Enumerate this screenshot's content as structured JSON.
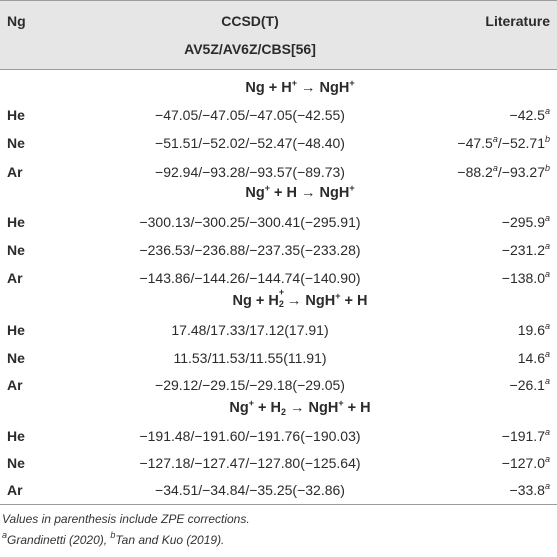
{
  "header": {
    "col_ng": "Ng",
    "col_ccsd_line1": "CCSD(T)",
    "col_ccsd_line2": "AV5Z/AV6Z/CBS[56]",
    "col_lit": "Literature"
  },
  "sections": [
    {
      "title": "Ng + H+ → NgH+",
      "rows": [
        {
          "ng": "He",
          "ccsd": "−47.05/−47.05/−47.05(−42.55)",
          "lit": "−42.5a"
        },
        {
          "ng": "Ne",
          "ccsd": "−51.51/−52.02/−52.47(−48.40)",
          "lit": "−47.5a/−52.71b"
        },
        {
          "ng": "Ar",
          "ccsd": "−92.94/−93.28/−93.57(−89.73)",
          "lit": "−88.2a/−93.27b"
        }
      ]
    },
    {
      "title": "Ng+ + H → NgH+",
      "rows": [
        {
          "ng": "He",
          "ccsd": "−300.13/−300.25/−300.41(−295.91)",
          "lit": "−295.9a"
        },
        {
          "ng": "Ne",
          "ccsd": "−236.53/−236.88/−237.35(−233.28)",
          "lit": "−231.2a"
        },
        {
          "ng": "Ar",
          "ccsd": "−143.86/−144.26/−144.74(−140.90)",
          "lit": "−138.0a"
        }
      ]
    },
    {
      "title": "Ng + H2+ → NgH+ + H",
      "rows": [
        {
          "ng": "He",
          "ccsd": "17.48/17.33/17.12(17.91)",
          "lit": "19.6a"
        },
        {
          "ng": "Ne",
          "ccsd": "11.53/11.53/11.55(11.91)",
          "lit": "14.6a"
        },
        {
          "ng": "Ar",
          "ccsd": "−29.12/−29.15/−29.18(−29.05)",
          "lit": "−26.1a"
        }
      ]
    },
    {
      "title": "Ng+ + H2 → NgH+ + H",
      "rows": [
        {
          "ng": "He",
          "ccsd": "−191.48/−191.60/−191.76(−190.03)",
          "lit": "−191.7a"
        },
        {
          "ng": "Ne",
          "ccsd": "−127.18/−127.47/−127.80(−125.64)",
          "lit": "−127.0a"
        },
        {
          "ng": "Ar",
          "ccsd": "−34.51/−34.84/−35.25(−32.86)",
          "lit": "−33.8a"
        }
      ]
    }
  ],
  "footnotes": {
    "line1": "Values in parenthesis include ZPE corrections.",
    "a_mark": "a",
    "a_text": "Grandinetti (2020), ",
    "b_mark": "b",
    "b_text": "Tan and Kuo (2019)."
  }
}
